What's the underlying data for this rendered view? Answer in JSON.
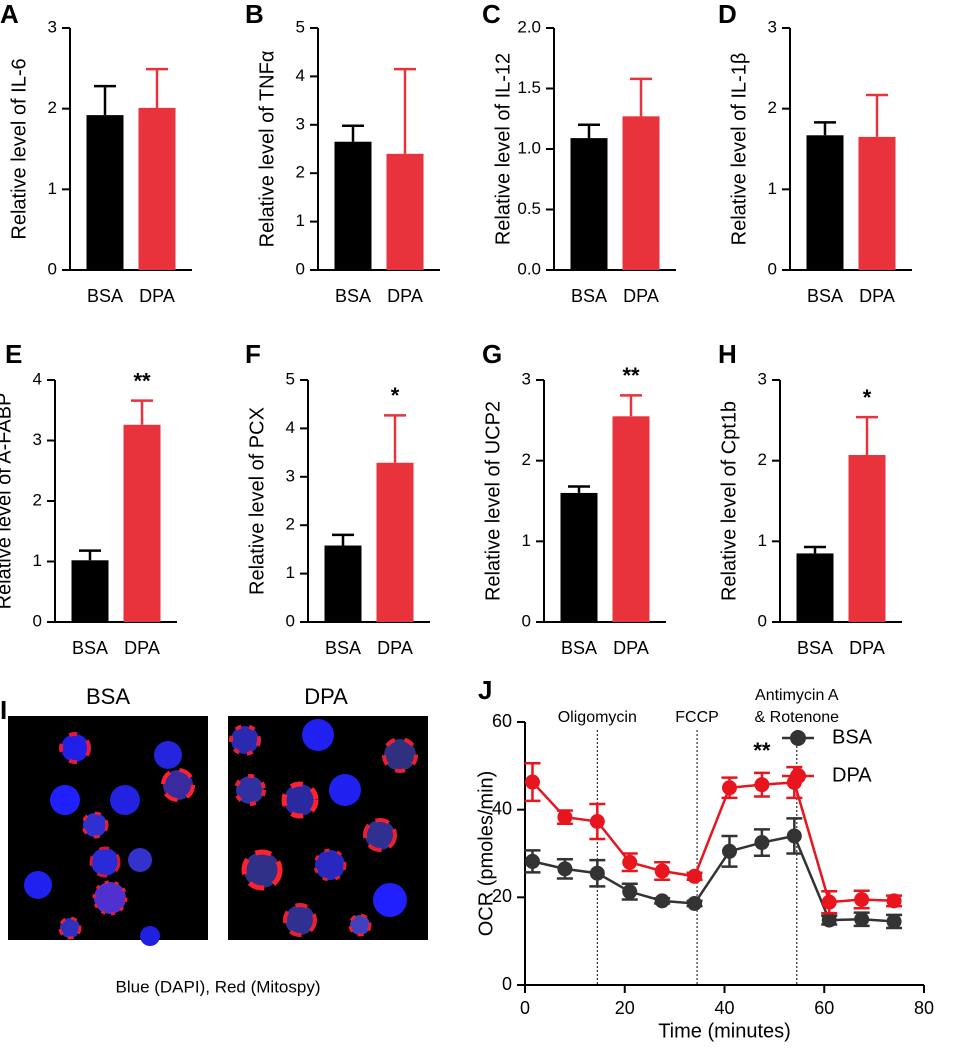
{
  "chart_data": [
    {
      "type": "bar",
      "panel": "A",
      "ylabel": "Relative level of IL-6",
      "categories": [
        "BSA",
        "DPA"
      ],
      "values": [
        1.92,
        2.01
      ],
      "errors": [
        0.36,
        0.48
      ],
      "colors": [
        "#000000",
        "#e8323c"
      ],
      "ylim": [
        0,
        3
      ],
      "yticks": [
        0,
        1,
        2,
        3
      ]
    },
    {
      "type": "bar",
      "panel": "B",
      "ylabel": "Relative level of TNFα",
      "categories": [
        "BSA",
        "DPA"
      ],
      "values": [
        2.65,
        2.4
      ],
      "errors": [
        0.33,
        1.75
      ],
      "colors": [
        "#000000",
        "#e8323c"
      ],
      "ylim": [
        0,
        5
      ],
      "yticks": [
        0,
        1,
        2,
        3,
        4,
        5
      ]
    },
    {
      "type": "bar",
      "panel": "C",
      "ylabel": "Relative level of IL-12",
      "categories": [
        "BSA",
        "DPA"
      ],
      "values": [
        1.09,
        1.27
      ],
      "errors": [
        0.11,
        0.31
      ],
      "colors": [
        "#000000",
        "#e8323c"
      ],
      "ylim": [
        0,
        2
      ],
      "yticks": [
        {
          "value": 0,
          "label": "0.0"
        },
        0.5,
        {
          "value": 1,
          "label": "1.0"
        },
        1.5,
        {
          "value": 2,
          "label": "2.0"
        }
      ]
    },
    {
      "type": "bar",
      "panel": "D",
      "ylabel": "Relative level of IL-1β",
      "categories": [
        "BSA",
        "DPA"
      ],
      "values": [
        1.67,
        1.65
      ],
      "errors": [
        0.16,
        0.52
      ],
      "colors": [
        "#000000",
        "#e8323c"
      ],
      "ylim": [
        0,
        3
      ],
      "yticks": [
        0,
        1,
        2,
        3
      ]
    },
    {
      "type": "bar",
      "panel": "E",
      "ylabel": "Relative level of A-FABP",
      "categories": [
        "BSA",
        "DPA"
      ],
      "values": [
        1.02,
        3.26
      ],
      "errors": [
        0.16,
        0.4
      ],
      "colors": [
        "#000000",
        "#e8323c"
      ],
      "ylim": [
        0,
        4
      ],
      "yticks": [
        0,
        1,
        2,
        3,
        4
      ],
      "annotation": "**"
    },
    {
      "type": "bar",
      "panel": "F",
      "ylabel": "Relative level of PCX",
      "categories": [
        "BSA",
        "DPA"
      ],
      "values": [
        1.58,
        3.29
      ],
      "errors": [
        0.22,
        0.98
      ],
      "colors": [
        "#000000",
        "#e8323c"
      ],
      "ylim": [
        0,
        5
      ],
      "yticks": [
        0,
        1,
        2,
        3,
        4,
        5
      ],
      "annotation": "*"
    },
    {
      "type": "bar",
      "panel": "G",
      "ylabel": "Relative level of UCP2",
      "categories": [
        "BSA",
        "DPA"
      ],
      "values": [
        1.6,
        2.55
      ],
      "errors": [
        0.08,
        0.26
      ],
      "colors": [
        "#000000",
        "#e8323c"
      ],
      "ylim": [
        0,
        3
      ],
      "yticks": [
        0,
        1,
        2,
        3
      ],
      "annotation": "**"
    },
    {
      "type": "bar",
      "panel": "H",
      "ylabel": "Relative level of Cpt1b",
      "categories": [
        "BSA",
        "DPA"
      ],
      "values": [
        0.85,
        2.07
      ],
      "errors": [
        0.08,
        0.47
      ],
      "colors": [
        "#000000",
        "#e8323c"
      ],
      "ylim": [
        0,
        3
      ],
      "yticks": [
        0,
        1,
        2,
        3
      ],
      "annotation": "*"
    },
    {
      "type": "line",
      "panel": "J",
      "xlabel": "Time (minutes)",
      "ylabel": "OCR (pmoles/min)",
      "x": [
        1.5,
        8,
        14.5,
        21,
        27.5,
        34,
        41,
        47.5,
        54,
        61,
        67.5,
        74
      ],
      "series": [
        {
          "name": "BSA",
          "color": "#333333",
          "values": [
            28.2,
            26.5,
            25.5,
            21.3,
            19.2,
            18.6,
            30.5,
            32.5,
            34,
            14.8,
            15,
            14.5
          ],
          "errors": [
            2.5,
            2.2,
            3,
            1.8,
            0.6,
            0.6,
            3.5,
            3,
            4,
            1,
            1.5,
            1.5
          ]
        },
        {
          "name": "DPA",
          "color": "#e8141e",
          "values": [
            46.3,
            38.3,
            37.3,
            28,
            26,
            24.8,
            45,
            45.7,
            46.2,
            18.9,
            19.5,
            19.2
          ],
          "errors": [
            4.3,
            1.5,
            4,
            2,
            2,
            0.8,
            2.3,
            2.7,
            3.5,
            2.5,
            2,
            1.2
          ]
        }
      ],
      "injections": [
        {
          "x": 14.5,
          "label": [
            "Oligomycin"
          ]
        },
        {
          "x": 34.5,
          "label": [
            "FCCP"
          ]
        },
        {
          "x": 54.5,
          "label": [
            "Antimycin A",
            "& Rotenone"
          ]
        }
      ],
      "significance": {
        "x": 47.5,
        "label": "**"
      },
      "xlim": [
        0,
        80
      ],
      "xticks": [
        0,
        20,
        40,
        60,
        80
      ],
      "ylim": [
        0,
        60
      ],
      "yticks": [
        0,
        20,
        40,
        60
      ],
      "legend": "right"
    }
  ],
  "image_panel": {
    "panel": "I",
    "titles": [
      "BSA",
      "DPA"
    ],
    "caption": "Blue (DAPI), Red (Mitospy)"
  }
}
